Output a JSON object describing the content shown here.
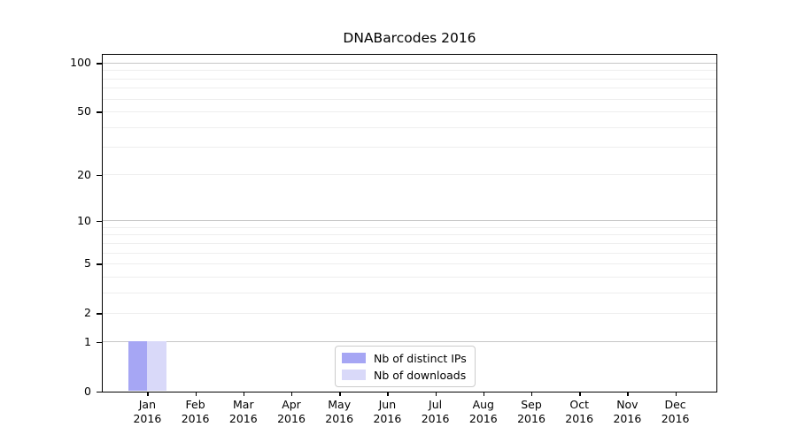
{
  "chart_data": {
    "type": "bar",
    "title": "DNABarcodes 2016",
    "categories": [
      "Jan",
      "Feb",
      "Mar",
      "Apr",
      "May",
      "Jun",
      "Jul",
      "Aug",
      "Sep",
      "Oct",
      "Nov",
      "Dec"
    ],
    "category_year": "2016",
    "series": [
      {
        "name": "Nb of distinct IPs",
        "color": "#a6a6f4",
        "values": [
          1,
          0,
          0,
          0,
          0,
          0,
          0,
          0,
          0,
          0,
          0,
          0
        ]
      },
      {
        "name": "Nb of downloads",
        "color": "#d9d9f9",
        "values": [
          1,
          0,
          0,
          0,
          0,
          0,
          0,
          0,
          0,
          0,
          0,
          0
        ]
      }
    ],
    "xlabel": "",
    "ylabel": "",
    "yscale": "log1p",
    "ylim": [
      0,
      112
    ],
    "y_ticks": [
      0,
      1,
      2,
      5,
      10,
      20,
      50,
      100
    ],
    "major_gridlines": [
      1,
      10,
      100
    ],
    "minor_gridlines": [
      2,
      3,
      4,
      5,
      6,
      7,
      8,
      9,
      20,
      30,
      40,
      50,
      60,
      70,
      80,
      90
    ],
    "grid": true,
    "legend_position": "lower center inside",
    "colors": {
      "major_grid": "#c6c6c6",
      "minor_grid": "#eeeeee",
      "axis": "#000000",
      "background": "#ffffff"
    }
  }
}
